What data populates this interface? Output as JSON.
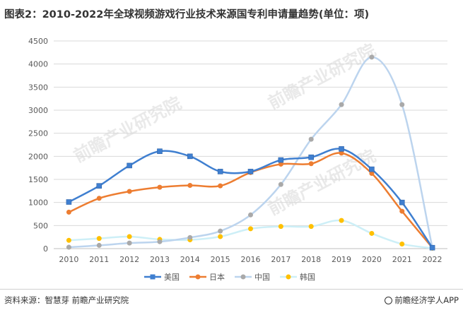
{
  "title": "图表2：2010-2022年全球视频游戏行业技术来源国专利申请量趋势(单位：项)",
  "footer": {
    "source": "资料来源：智慧芽 前瞻产业研究院",
    "brand": "前瞻经济学人APP"
  },
  "watermark": "前瞻产业研究院",
  "chart_data": {
    "type": "line",
    "title": "",
    "xlabel": "",
    "ylabel": "",
    "categories": [
      "2010",
      "2011",
      "2012",
      "2013",
      "2014",
      "2015",
      "2016",
      "2017",
      "2018",
      "2019",
      "2020",
      "2021",
      "2022"
    ],
    "ylim": [
      0,
      4500
    ],
    "yticks": [
      0,
      500,
      1000,
      1500,
      2000,
      2500,
      3000,
      3500,
      4000,
      4500
    ],
    "smooth": true,
    "grid": true,
    "legend": "bottom",
    "series": [
      {
        "name": "美国",
        "color": "#3f7fd0",
        "marker": "square",
        "values": [
          1010,
          1360,
          1800,
          2110,
          2000,
          1670,
          1670,
          1920,
          1980,
          2160,
          1720,
          1000,
          20
        ]
      },
      {
        "name": "日本",
        "color": "#ed7d31",
        "marker": "circle",
        "values": [
          790,
          1090,
          1240,
          1330,
          1370,
          1360,
          1650,
          1830,
          1840,
          2070,
          1630,
          810,
          20
        ]
      },
      {
        "name": "中国",
        "color": "#a9a9a9",
        "lineColor": "#bcd4ee",
        "marker": "circle",
        "values": [
          30,
          70,
          120,
          150,
          240,
          380,
          730,
          1390,
          2370,
          3120,
          4150,
          3120,
          20
        ]
      },
      {
        "name": "韩国",
        "color": "#ffc000",
        "lineColor": "#cdeff7",
        "marker": "circle",
        "values": [
          180,
          220,
          260,
          200,
          190,
          260,
          430,
          480,
          480,
          610,
          330,
          100,
          10
        ]
      }
    ]
  }
}
